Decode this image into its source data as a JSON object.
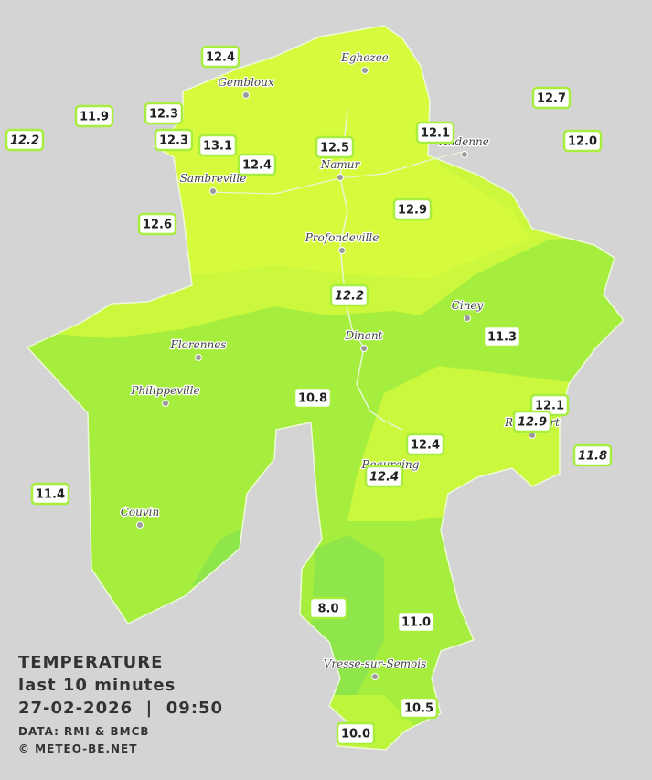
{
  "legend": {
    "title": "TEMPERATURE",
    "subtitle": "last 10 minutes",
    "timestamp": "27-02-2026  |  09:50",
    "source": "DATA: RMI & BMCB",
    "copyright": "© METEO-BE.NET"
  },
  "cities": [
    "Eghezee",
    "Gembloux",
    "Andenne",
    "Namur",
    "Sambreville",
    "Profondeville",
    "Ciney",
    "Dinant",
    "Florennes",
    "Philippeville",
    "Rochefort",
    "Beauraing",
    "Couvin",
    "Vresse-sur-Semois"
  ],
  "stations": [
    "12.4",
    "11.9",
    "12.3",
    "12.2",
    "12.3",
    "13.1",
    "12.4",
    "12.5",
    "12.1",
    "12.7",
    "12.0",
    "12.9",
    "12.6",
    "12.2",
    "11.3",
    "10.8",
    "12.1",
    "12.9",
    "11.8",
    "12.4",
    "12.4",
    "11.4",
    "8.0",
    "11.0",
    "10.5",
    "10.0"
  ]
}
